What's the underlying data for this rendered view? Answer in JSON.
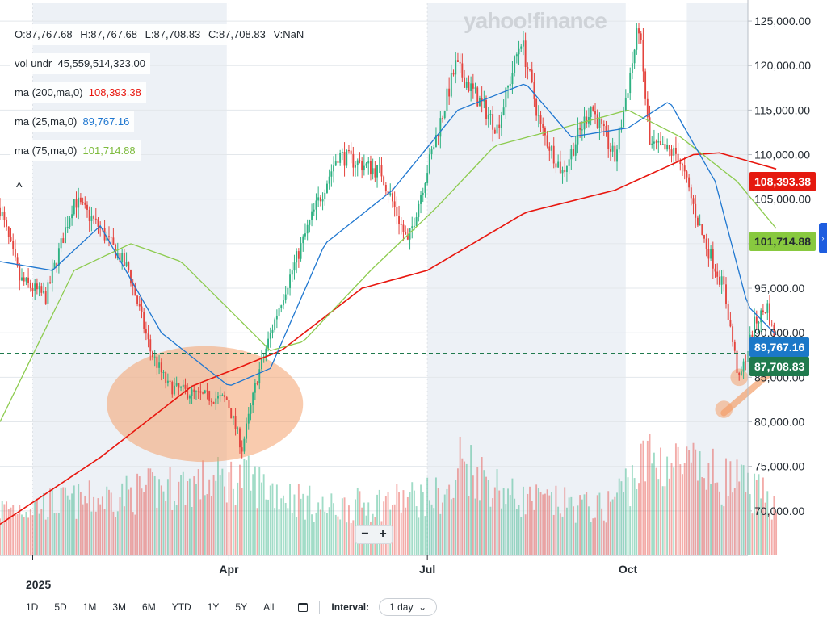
{
  "brand": "yahoo!finance",
  "legend": {
    "ohlc": {
      "open": "O:87,767.68",
      "high": "H:87,767.68",
      "low": "L:87,708.83",
      "close": "C:87,708.83",
      "volume": "V:NaN"
    },
    "volume_under": {
      "label": "vol undr",
      "value": "45,559,514,323.00"
    },
    "ma200": {
      "label": "ma (200,ma,0)",
      "value": "108,393.38"
    },
    "ma25": {
      "label": "ma (25,ma,0)",
      "value": "89,767.16"
    },
    "ma75": {
      "label": "ma (75,ma,0)",
      "value": "101,714.88"
    }
  },
  "badges": {
    "ma200": "108,393.38",
    "ma75": "101,714.88",
    "ma25": "89,767.16",
    "last": "87,708.83"
  },
  "colors": {
    "up": "#2eb182",
    "down": "#e4443e",
    "ma200": "#e8160e",
    "ma25": "#1f77d0",
    "ma75": "#8ccb4e",
    "highlight": "#f4a06b",
    "last_badge": "#1f7a4d",
    "ma25_badge": "#1b78c8",
    "ma75_badge": "#88c93f",
    "ma200_badge": "#e5190f"
  },
  "controls": {
    "zoom_out": "−",
    "zoom_in": "+",
    "collapse": "^",
    "side_tab": "›",
    "calendar": "calendar-icon",
    "interval_label": "Interval:",
    "interval_value": "1 day",
    "ranges": [
      "1D",
      "5D",
      "1M",
      "3M",
      "6M",
      "YTD",
      "1Y",
      "5Y",
      "All"
    ]
  },
  "chart_data": {
    "type": "candlestick",
    "xlabel": "",
    "ylabel": "",
    "ylim": [
      65000,
      127000
    ],
    "y_ticks": [
      70000,
      75000,
      80000,
      85000,
      90000,
      95000,
      100000,
      105000,
      110000,
      115000,
      120000,
      125000
    ],
    "y_tick_labels": [
      "70,000.00",
      "75,000.00",
      "80,000.00",
      "85,000.00",
      "90,000.00",
      "95,000.00",
      "100,000.00",
      "105,000.00",
      "110,000.00",
      "115,000.00",
      "120,000.00",
      "125,000.00"
    ],
    "x_range": [
      "2024-12-17",
      "2025-11-25"
    ],
    "x_ticks": [
      {
        "date": "2025-01-01",
        "label": "",
        "year_label": "2025"
      },
      {
        "date": "2025-04-01",
        "label": "Apr"
      },
      {
        "date": "2025-07-01",
        "label": "Jul"
      },
      {
        "date": "2025-10-01",
        "label": "Oct"
      }
    ],
    "last_price": 87708.83,
    "price_keypoints": [
      [
        "2024-12-17",
        104000
      ],
      [
        "2024-12-26",
        96000
      ],
      [
        "2025-01-07",
        94000
      ],
      [
        "2025-01-20",
        105000
      ],
      [
        "2025-01-31",
        102000
      ],
      [
        "2025-02-14",
        97000
      ],
      [
        "2025-02-24",
        88000
      ],
      [
        "2025-03-04",
        84000
      ],
      [
        "2025-03-17",
        83000
      ],
      [
        "2025-03-31",
        82500
      ],
      [
        "2025-04-07",
        77000
      ],
      [
        "2025-04-14",
        85000
      ],
      [
        "2025-04-24",
        93000
      ],
      [
        "2025-05-09",
        103000
      ],
      [
        "2025-05-21",
        110000
      ],
      [
        "2025-06-10",
        108000
      ],
      [
        "2025-06-22",
        100000
      ],
      [
        "2025-06-30",
        107500
      ],
      [
        "2025-07-14",
        120000
      ],
      [
        "2025-08-02",
        113000
      ],
      [
        "2025-08-13",
        123000
      ],
      [
        "2025-08-22",
        113000
      ],
      [
        "2025-09-01",
        108000
      ],
      [
        "2025-09-14",
        115500
      ],
      [
        "2025-09-25",
        109500
      ],
      [
        "2025-10-06",
        124500
      ],
      [
        "2025-10-11",
        111000
      ],
      [
        "2025-10-24",
        110000
      ],
      [
        "2025-11-04",
        101000
      ],
      [
        "2025-11-14",
        95000
      ],
      [
        "2025-11-21",
        84500
      ],
      [
        "2025-11-28",
        91000
      ],
      [
        "2025-12-04",
        93000
      ],
      [
        "2025-12-08",
        87700
      ]
    ],
    "ma_keypoints": {
      "ma200": [
        [
          "2024-12-17",
          68500
        ],
        [
          "2025-02-01",
          76000
        ],
        [
          "2025-03-15",
          84000
        ],
        [
          "2025-04-25",
          88000
        ],
        [
          "2025-06-01",
          95000
        ],
        [
          "2025-07-01",
          97000
        ],
        [
          "2025-08-15",
          103500
        ],
        [
          "2025-09-25",
          106000
        ],
        [
          "2025-10-31",
          110000
        ],
        [
          "2025-11-12",
          110200
        ],
        [
          "2025-12-08",
          108393.38
        ]
      ],
      "ma25": [
        [
          "2024-12-17",
          98000
        ],
        [
          "2025-01-10",
          97000
        ],
        [
          "2025-02-01",
          102000
        ],
        [
          "2025-03-01",
          90000
        ],
        [
          "2025-04-01",
          84000
        ],
        [
          "2025-04-20",
          86000
        ],
        [
          "2025-05-15",
          100000
        ],
        [
          "2025-06-15",
          106000
        ],
        [
          "2025-07-15",
          115000
        ],
        [
          "2025-08-15",
          118000
        ],
        [
          "2025-09-05",
          112000
        ],
        [
          "2025-10-01",
          113000
        ],
        [
          "2025-10-20",
          116000
        ],
        [
          "2025-11-10",
          107000
        ],
        [
          "2025-11-25",
          93000
        ],
        [
          "2025-12-08",
          89767.16
        ]
      ],
      "ma75": [
        [
          "2024-12-17",
          80000
        ],
        [
          "2025-01-20",
          97000
        ],
        [
          "2025-02-15",
          100000
        ],
        [
          "2025-03-10",
          98000
        ],
        [
          "2025-04-20",
          88000
        ],
        [
          "2025-05-05",
          89000
        ],
        [
          "2025-06-05",
          97000
        ],
        [
          "2025-07-05",
          104000
        ],
        [
          "2025-08-01",
          111000
        ],
        [
          "2025-09-01",
          113000
        ],
        [
          "2025-10-01",
          115000
        ],
        [
          "2025-10-25",
          112000
        ],
        [
          "2025-11-20",
          107000
        ],
        [
          "2025-12-08",
          101714.88
        ]
      ]
    },
    "volume_keypoints": [
      [
        "2024-12-17",
        0.45
      ],
      [
        "2025-02-01",
        0.55
      ],
      [
        "2025-03-01",
        0.65
      ],
      [
        "2025-04-07",
        0.75
      ],
      [
        "2025-05-15",
        0.45
      ],
      [
        "2025-07-14",
        0.6
      ],
      [
        "2025-07-15",
        0.95
      ],
      [
        "2025-08-10",
        0.55
      ],
      [
        "2025-09-20",
        0.45
      ],
      [
        "2025-10-11",
        0.95
      ],
      [
        "2025-11-20",
        0.7
      ],
      [
        "2025-12-08",
        0.5
      ]
    ],
    "shaded_quarters": [
      [
        "2025-01-01",
        "2025-03-31"
      ],
      [
        "2025-07-01",
        "2025-09-30"
      ],
      [
        "2025-10-28",
        "2025-11-25"
      ]
    ],
    "highlights": [
      {
        "shape": "ellipse",
        "date": "2025-03-21",
        "price": 82000,
        "rx_days": 45,
        "ry_price": 6500
      },
      {
        "shape": "circle",
        "date": "2025-11-14",
        "price": 81400,
        "r_days": 4
      },
      {
        "shape": "circle",
        "date": "2025-11-21",
        "price": 85000,
        "r_days": 4
      },
      {
        "shape": "circle",
        "date": "2025-12-06",
        "price": 86200,
        "r_days": 4
      },
      {
        "shape": "trendline",
        "from": [
          "2025-11-14",
          81000
        ],
        "to": [
          "2025-12-10",
          86500
        ]
      }
    ]
  }
}
